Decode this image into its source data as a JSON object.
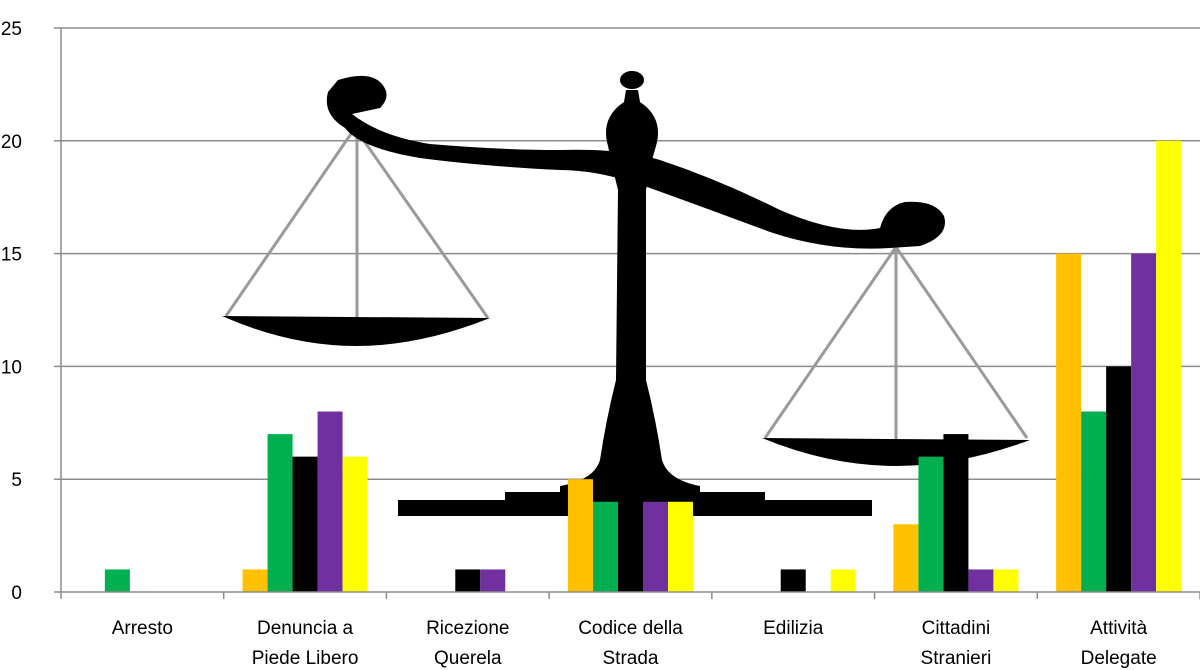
{
  "chart_data": {
    "type": "bar",
    "categories": [
      [
        "Arresto"
      ],
      [
        "Denuncia a",
        "Piede Libero"
      ],
      [
        "Ricezione",
        "Querela"
      ],
      [
        "Codice della",
        "Strada"
      ],
      [
        "Edilizia"
      ],
      [
        "Cittadini",
        "Stranieri"
      ],
      [
        "Attività",
        "Delegate"
      ]
    ],
    "series": [
      {
        "color": "#FFC000",
        "values": [
          0,
          1,
          0,
          5,
          0,
          3,
          15
        ]
      },
      {
        "color": "#00B050",
        "values": [
          1,
          7,
          0,
          4,
          0,
          6,
          8
        ]
      },
      {
        "color": "#000000",
        "values": [
          0,
          6,
          1,
          7,
          1,
          7,
          10
        ]
      },
      {
        "color": "#7030A0",
        "values": [
          0,
          8,
          1,
          4,
          0,
          1,
          15
        ]
      },
      {
        "color": "#FFFF00",
        "values": [
          0,
          6,
          0,
          4,
          1,
          1,
          20
        ]
      }
    ],
    "ylim": [
      0,
      25
    ],
    "yticks": [
      "0",
      "5",
      "10",
      "15",
      "20",
      "25"
    ],
    "grid": true,
    "legend": "none",
    "background_image": "balance-scale-icon"
  }
}
